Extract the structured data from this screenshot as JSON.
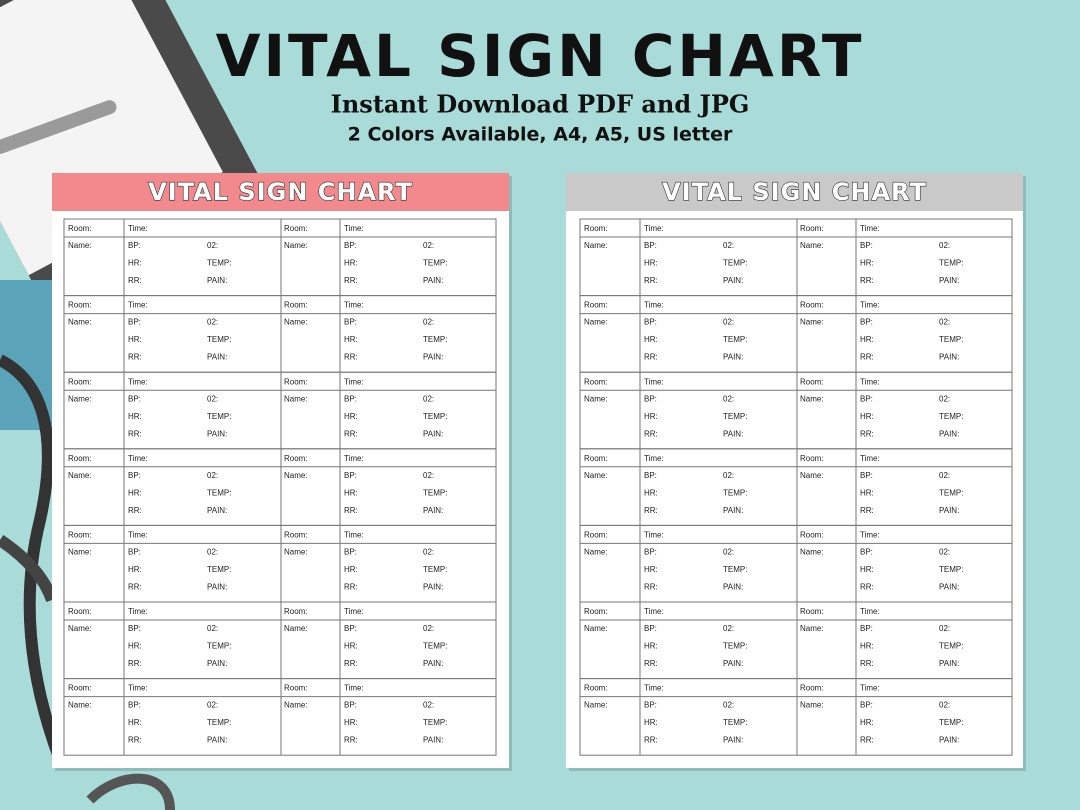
{
  "header": {
    "title": "VITAL SIGN CHART",
    "subtitle": "Instant Download PDF and JPG",
    "details": "2 Colors Available, A4, A5, US letter"
  },
  "sheets": [
    {
      "title": "VITAL SIGN CHART",
      "color": "#f2898d"
    },
    {
      "title": "VITAL SIGN CHART",
      "color": "#c9c9c9"
    }
  ],
  "form_labels": {
    "room": "Room:",
    "time": "Time:",
    "name": "Name:",
    "bp": "BP:",
    "o2": "02:",
    "hr": "HR:",
    "temp": "TEMP:",
    "rr": "RR:",
    "pain": "PAIN:"
  }
}
